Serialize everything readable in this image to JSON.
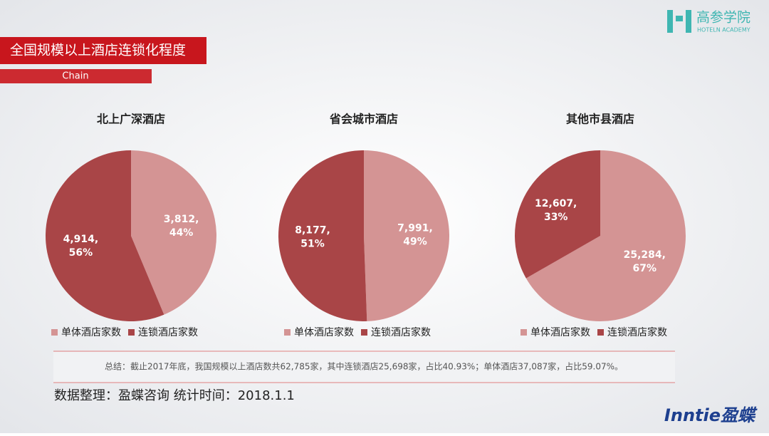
{
  "header": {
    "title": "全国规模以上酒店连锁化程度",
    "subtitle": "Chain"
  },
  "logo": {
    "name": "高参学院",
    "tagline": "HOTELN ACADEMY"
  },
  "chart_data": [
    {
      "type": "pie",
      "title": "北上广深酒店",
      "categories": [
        "单体酒店家数",
        "连锁酒店家数"
      ],
      "values": [
        3812,
        4914
      ],
      "value_labels": [
        [
          "3,812,",
          "44%"
        ],
        [
          "4,914,",
          "56%"
        ]
      ],
      "colors": [
        "#d49494",
        "#a94547"
      ]
    },
    {
      "type": "pie",
      "title": "省会城市酒店",
      "categories": [
        "单体酒店家数",
        "连锁酒店家数"
      ],
      "values": [
        7991,
        8177
      ],
      "value_labels": [
        [
          "7,991,",
          "49%"
        ],
        [
          "8,177,",
          "51%"
        ]
      ],
      "colors": [
        "#d49494",
        "#a94547"
      ]
    },
    {
      "type": "pie",
      "title": "其他市县酒店",
      "categories": [
        "单体酒店家数",
        "连锁酒店家数"
      ],
      "values": [
        25284,
        12607
      ],
      "value_labels": [
        [
          "25,284,",
          "67%"
        ],
        [
          "12,607,",
          "33%"
        ]
      ],
      "colors": [
        "#d49494",
        "#a94547"
      ]
    }
  ],
  "summary": "总结：截止2017年底，我国规模以上酒店数共62,785家，其中连锁酒店25,698家，占比40.93%；单体酒店37,087家，占比59.07%。",
  "source": "数据整理：盈蝶咨询  统计时间：2018.1.1",
  "brand": "Inntie盈蝶"
}
